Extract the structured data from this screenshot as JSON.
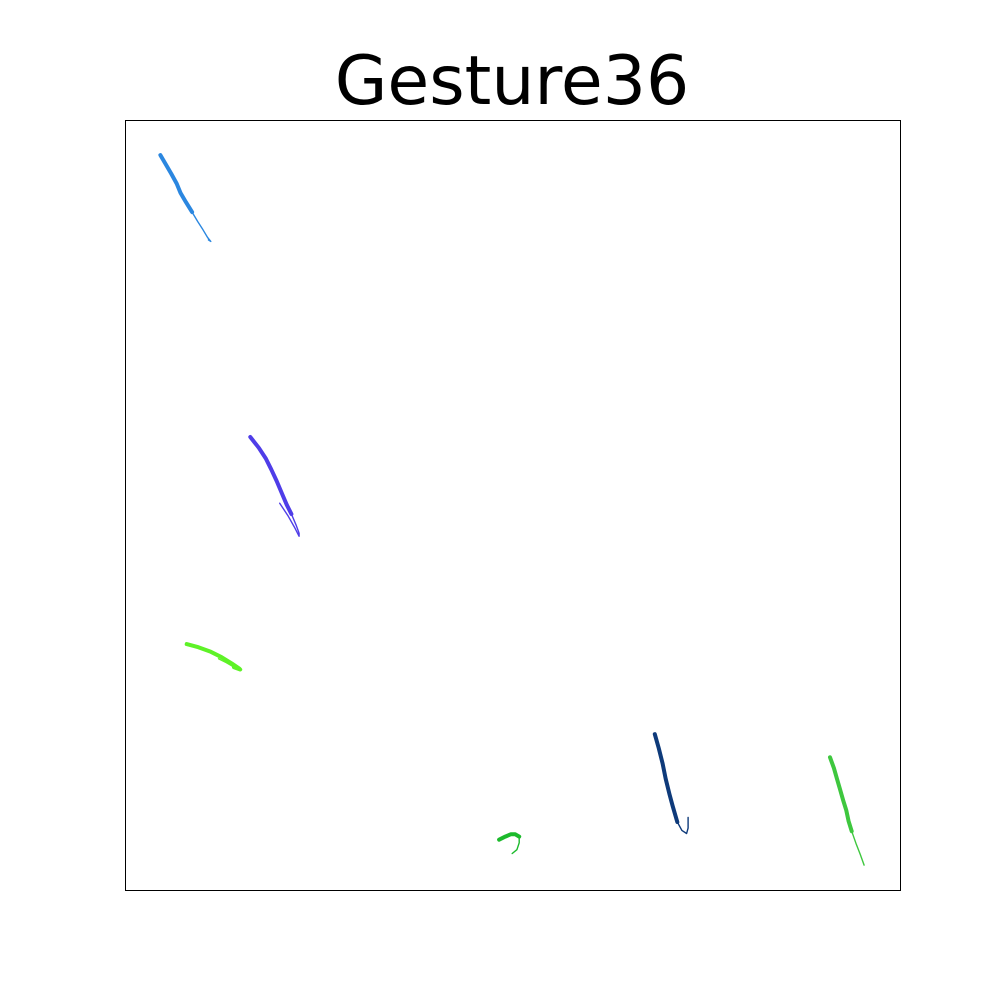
{
  "chart_data": {
    "type": "line",
    "title": "Gesture36",
    "xlabel": "",
    "ylabel": "",
    "xlim": [
      0,
      1
    ],
    "ylim": [
      0,
      1
    ],
    "axes_visible": false,
    "grid": false,
    "legend": "none",
    "series": [
      {
        "color": "#2b87e0",
        "thick_until": 6,
        "points": [
          [
            0.045,
            0.955
          ],
          [
            0.052,
            0.943
          ],
          [
            0.059,
            0.931
          ],
          [
            0.066,
            0.918
          ],
          [
            0.071,
            0.906
          ],
          [
            0.078,
            0.894
          ],
          [
            0.086,
            0.881
          ],
          [
            0.093,
            0.869
          ],
          [
            0.1,
            0.858
          ],
          [
            0.106,
            0.848
          ],
          [
            0.11,
            0.843
          ],
          [
            0.107,
            0.845
          ]
        ]
      },
      {
        "color": "#4f3de8",
        "thick_until": 7,
        "points": [
          [
            0.161,
            0.589
          ],
          [
            0.172,
            0.575
          ],
          [
            0.181,
            0.561
          ],
          [
            0.188,
            0.547
          ],
          [
            0.195,
            0.532
          ],
          [
            0.202,
            0.515
          ],
          [
            0.208,
            0.501
          ],
          [
            0.214,
            0.489
          ],
          [
            0.22,
            0.475
          ],
          [
            0.224,
            0.464
          ],
          [
            0.224,
            0.46
          ],
          [
            0.218,
            0.472
          ],
          [
            0.21,
            0.486
          ],
          [
            0.199,
            0.503
          ]
        ]
      },
      {
        "color": "#5ef227",
        "thick_until": 7,
        "points": [
          [
            0.079,
            0.32
          ],
          [
            0.094,
            0.316
          ],
          [
            0.11,
            0.31
          ],
          [
            0.124,
            0.303
          ],
          [
            0.137,
            0.295
          ],
          [
            0.147,
            0.288
          ],
          [
            0.148,
            0.287
          ],
          [
            0.14,
            0.29
          ],
          [
            0.13,
            0.296
          ],
          [
            0.12,
            0.301
          ]
        ]
      },
      {
        "color": "#1cba2c",
        "thick_until": 4,
        "points": [
          [
            0.482,
            0.066
          ],
          [
            0.49,
            0.07
          ],
          [
            0.497,
            0.073
          ],
          [
            0.503,
            0.073
          ],
          [
            0.508,
            0.07
          ],
          [
            0.508,
            0.062
          ],
          [
            0.505,
            0.053
          ],
          [
            0.499,
            0.048
          ]
        ]
      },
      {
        "color": "#0e3a7a",
        "thick_until": 6,
        "points": [
          [
            0.683,
            0.203
          ],
          [
            0.688,
            0.185
          ],
          [
            0.693,
            0.165
          ],
          [
            0.697,
            0.145
          ],
          [
            0.702,
            0.125
          ],
          [
            0.706,
            0.11
          ],
          [
            0.712,
            0.089
          ],
          [
            0.718,
            0.078
          ],
          [
            0.724,
            0.074
          ],
          [
            0.726,
            0.081
          ],
          [
            0.726,
            0.095
          ]
        ]
      },
      {
        "color": "#3ec73e",
        "thick_until": 7,
        "points": [
          [
            0.909,
            0.173
          ],
          [
            0.914,
            0.159
          ],
          [
            0.918,
            0.145
          ],
          [
            0.922,
            0.131
          ],
          [
            0.926,
            0.117
          ],
          [
            0.93,
            0.104
          ],
          [
            0.933,
            0.09
          ],
          [
            0.937,
            0.077
          ],
          [
            0.943,
            0.06
          ],
          [
            0.948,
            0.047
          ],
          [
            0.953,
            0.033
          ]
        ]
      }
    ]
  }
}
